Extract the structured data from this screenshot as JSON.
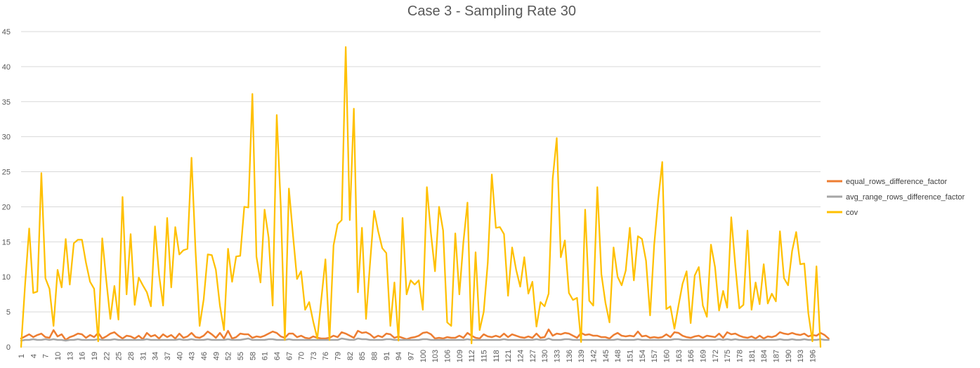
{
  "chart_data": {
    "type": "line",
    "title": "Case 3 - Sampling Rate 30",
    "xlabel": "",
    "ylabel": "",
    "ylim": [
      0,
      45
    ],
    "yticks": [
      0,
      5,
      10,
      15,
      20,
      25,
      30,
      35,
      40,
      45
    ],
    "x_tick_labels": [
      "1",
      "4",
      "7",
      "10",
      "13",
      "16",
      "19",
      "22",
      "25",
      "28",
      "31",
      "34",
      "37",
      "40",
      "43",
      "46",
      "49",
      "52",
      "55",
      "58",
      "61",
      "64",
      "67",
      "70",
      "73",
      "76",
      "79",
      "82",
      "85",
      "88",
      "91",
      "94",
      "97",
      "100",
      "103",
      "106",
      "109",
      "112",
      "115",
      "118",
      "121",
      "124",
      "127",
      "130",
      "133",
      "136",
      "139",
      "142",
      "145",
      "148",
      "151",
      "154",
      "157",
      "160",
      "163",
      "166",
      "169",
      "172",
      "175",
      "178",
      "181",
      "184",
      "187",
      "190",
      "193",
      "196"
    ],
    "x_count": 198,
    "grid": true,
    "legend_position": "right",
    "series": [
      {
        "name": "equal_rows_difference_factor",
        "color": "#ED7D31",
        "values": [
          1.2,
          1.5,
          1.8,
          1.4,
          1.7,
          1.9,
          1.4,
          1.3,
          2.4,
          1.5,
          1.8,
          1.0,
          1.4,
          1.6,
          1.9,
          1.8,
          1.3,
          1.7,
          1.4,
          2.0,
          1.2,
          1.5,
          1.9,
          2.1,
          1.6,
          1.2,
          1.6,
          1.5,
          1.2,
          1.6,
          1.1,
          2.0,
          1.5,
          1.7,
          1.2,
          1.8,
          1.4,
          1.7,
          1.2,
          1.9,
          1.3,
          1.5,
          2.0,
          1.4,
          1.3,
          1.6,
          2.2,
          1.8,
          1.3,
          2.0,
          1.2,
          2.3,
          1.2,
          1.4,
          1.9,
          1.8,
          1.8,
          1.3,
          1.5,
          1.4,
          1.6,
          1.9,
          2.2,
          2.0,
          1.5,
          1.3,
          1.9,
          1.9,
          1.4,
          1.6,
          1.3,
          1.2,
          1.5,
          1.3,
          1.2,
          1.2,
          1.3,
          1.6,
          1.4,
          2.1,
          1.9,
          1.6,
          1.3,
          2.3,
          2.0,
          2.1,
          1.8,
          1.3,
          1.6,
          1.4,
          1.9,
          1.8,
          1.3,
          1.5,
          1.3,
          1.1,
          1.3,
          1.4,
          1.6,
          2.0,
          2.1,
          1.8,
          1.2,
          1.3,
          1.2,
          1.4,
          1.3,
          1.3,
          1.6,
          1.3,
          2.0,
          1.6,
          1.3,
          1.2,
          1.8,
          1.5,
          1.4,
          1.6,
          1.4,
          1.9,
          1.4,
          1.8,
          1.6,
          1.4,
          1.3,
          1.5,
          1.3,
          1.9,
          1.3,
          1.4,
          2.5,
          1.6,
          1.9,
          1.8,
          2.0,
          1.9,
          1.6,
          1.3,
          2.0,
          1.7,
          1.8,
          1.6,
          1.6,
          1.4,
          1.4,
          1.2,
          1.7,
          2.0,
          1.6,
          1.5,
          1.6,
          1.5,
          2.2,
          1.5,
          1.6,
          1.3,
          1.4,
          1.3,
          1.4,
          1.8,
          1.4,
          2.1,
          2.0,
          1.6,
          1.4,
          1.3,
          1.5,
          1.6,
          1.3,
          1.6,
          1.5,
          1.4,
          1.9,
          1.3,
          2.1,
          1.8,
          1.9,
          1.6,
          1.4,
          1.3,
          1.5,
          1.2,
          1.6,
          1.2,
          1.5,
          1.4,
          1.6,
          2.1,
          1.9,
          1.8,
          2.0,
          1.8,
          1.7,
          1.9,
          1.5,
          1.7,
          1.6,
          2.0,
          1.7,
          1.2
        ]
      },
      {
        "name": "avg_range_rows_difference_factor",
        "color": "#A5A5A5",
        "values": [
          0.9,
          1.0,
          1.0,
          1.1,
          1.0,
          1.0,
          1.1,
          1.0,
          1.1,
          1.0,
          1.0,
          0.9,
          1.0,
          1.0,
          1.1,
          1.0,
          1.0,
          1.0,
          1.0,
          1.1,
          1.0,
          1.0,
          1.0,
          1.1,
          1.0,
          1.0,
          1.0,
          1.0,
          1.0,
          1.0,
          1.0,
          1.1,
          1.0,
          1.0,
          1.0,
          1.0,
          1.0,
          1.0,
          1.0,
          1.1,
          1.0,
          1.0,
          1.1,
          1.0,
          1.0,
          1.0,
          1.1,
          1.0,
          1.0,
          1.0,
          1.0,
          1.1,
          1.0,
          1.0,
          1.0,
          1.1,
          1.2,
          1.0,
          1.0,
          1.0,
          1.0,
          1.1,
          1.1,
          1.0,
          1.0,
          1.0,
          1.1,
          1.0,
          1.0,
          1.0,
          1.0,
          1.0,
          1.0,
          1.0,
          1.0,
          1.0,
          1.0,
          1.0,
          1.0,
          1.2,
          1.1,
          1.0,
          1.0,
          1.2,
          1.1,
          1.1,
          1.0,
          1.0,
          1.0,
          1.0,
          1.1,
          1.1,
          1.0,
          1.0,
          1.0,
          1.0,
          1.0,
          1.0,
          1.0,
          1.1,
          1.1,
          1.0,
          1.0,
          1.0,
          1.0,
          1.0,
          1.0,
          1.0,
          1.0,
          1.0,
          1.1,
          1.0,
          1.0,
          1.0,
          1.0,
          1.0,
          1.0,
          1.0,
          1.0,
          1.1,
          1.0,
          1.0,
          1.0,
          1.0,
          1.0,
          1.0,
          1.0,
          1.1,
          1.0,
          1.0,
          1.2,
          1.0,
          1.0,
          1.0,
          1.1,
          1.1,
          1.0,
          1.0,
          1.0,
          1.0,
          1.0,
          1.0,
          1.0,
          1.0,
          1.0,
          1.0,
          1.0,
          1.1,
          1.0,
          1.0,
          1.0,
          1.0,
          1.1,
          1.0,
          1.0,
          1.0,
          1.0,
          1.0,
          1.0,
          1.0,
          1.0,
          1.1,
          1.1,
          1.0,
          1.0,
          1.0,
          1.0,
          1.0,
          1.0,
          1.0,
          1.0,
          1.0,
          1.1,
          1.0,
          1.1,
          1.0,
          1.1,
          1.0,
          1.0,
          1.0,
          1.0,
          1.0,
          1.0,
          1.0,
          1.0,
          1.0,
          1.0,
          1.1,
          1.0,
          1.0,
          1.1,
          1.0,
          1.0,
          1.1,
          1.0,
          1.0,
          1.0,
          1.1,
          1.0,
          1.0
        ]
      },
      {
        "name": "cov",
        "color": "#FFC000",
        "values": [
          0.0,
          9.0,
          16.9,
          7.7,
          7.9,
          24.8,
          9.8,
          8.3,
          3.0,
          11.0,
          8.5,
          15.4,
          8.9,
          14.8,
          15.3,
          15.3,
          12.0,
          9.3,
          8.3,
          0.8,
          15.5,
          9.5,
          4.0,
          8.7,
          3.9,
          21.4,
          7.5,
          16.1,
          6.0,
          9.9,
          8.8,
          7.8,
          5.8,
          17.2,
          10.3,
          5.9,
          18.4,
          8.5,
          17.1,
          13.2,
          13.8,
          14.0,
          27.0,
          13.6,
          3.0,
          6.8,
          13.2,
          13.1,
          11.0,
          5.9,
          2.4,
          14.0,
          9.3,
          12.9,
          13.0,
          20.0,
          19.9,
          36.1,
          12.9,
          9.2,
          19.6,
          15.6,
          5.9,
          33.1,
          20.0,
          1.0,
          22.6,
          16.0,
          9.7,
          10.8,
          5.3,
          6.4,
          3.6,
          1.2,
          6.9,
          12.5,
          1.0,
          14.5,
          17.5,
          18.1,
          42.8,
          18.1,
          34.0,
          7.8,
          17.0,
          4.0,
          12.0,
          19.4,
          16.5,
          14.1,
          13.4,
          3.0,
          9.2,
          0.9,
          18.4,
          7.5,
          9.5,
          8.9,
          9.5,
          5.3,
          22.8,
          16.2,
          10.8,
          20.0,
          16.6,
          3.5,
          3.0,
          16.2,
          7.5,
          15.0,
          20.6,
          0.5,
          13.5,
          2.4,
          5.0,
          12.0,
          24.6,
          17.0,
          17.1,
          16.1,
          7.3,
          14.2,
          11.0,
          8.6,
          12.8,
          7.6,
          9.3,
          2.9,
          6.4,
          5.8,
          7.6,
          24.0,
          29.8,
          12.8,
          15.2,
          7.7,
          6.7,
          7.0,
          0.7,
          19.6,
          6.6,
          5.9,
          22.8,
          10.4,
          6.3,
          3.5,
          14.2,
          10.0,
          8.8,
          10.9,
          17.0,
          9.5,
          15.8,
          15.4,
          12.3,
          4.5,
          14.5,
          21.0,
          26.4,
          5.4,
          5.8,
          2.6,
          5.9,
          9.0,
          10.8,
          3.4,
          10.2,
          11.4,
          5.9,
          4.3,
          14.6,
          11.4,
          5.2,
          8.0,
          5.6,
          18.5,
          11.6,
          5.5,
          6.0,
          16.6,
          5.3,
          9.2,
          6.1,
          11.8,
          6.2,
          7.6,
          6.5,
          16.5,
          9.8,
          8.8,
          13.7,
          16.4,
          11.8,
          11.9,
          4.8,
          0.8,
          11.5,
          0.0
        ]
      }
    ]
  }
}
